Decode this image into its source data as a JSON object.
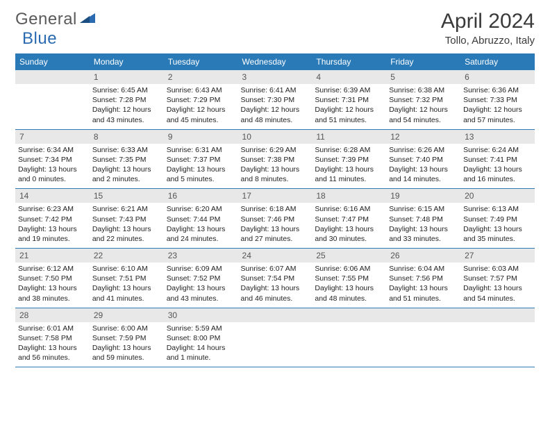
{
  "brand": {
    "name_gray": "General",
    "name_blue": "Blue"
  },
  "title": {
    "month": "April 2024",
    "location": "Tollo, Abruzzo, Italy"
  },
  "colors": {
    "header_bg": "#2a7ab8",
    "header_text": "#ffffff",
    "daynum_bg": "#e8e8e8",
    "border": "#2a7ab8",
    "brand_gray": "#5a5a5a",
    "brand_blue": "#2a6ab0"
  },
  "weekdays": [
    "Sunday",
    "Monday",
    "Tuesday",
    "Wednesday",
    "Thursday",
    "Friday",
    "Saturday"
  ],
  "start_offset": 1,
  "days": [
    {
      "n": 1,
      "sr": "6:45 AM",
      "ss": "7:28 PM",
      "dl": "12 hours and 43 minutes."
    },
    {
      "n": 2,
      "sr": "6:43 AM",
      "ss": "7:29 PM",
      "dl": "12 hours and 45 minutes."
    },
    {
      "n": 3,
      "sr": "6:41 AM",
      "ss": "7:30 PM",
      "dl": "12 hours and 48 minutes."
    },
    {
      "n": 4,
      "sr": "6:39 AM",
      "ss": "7:31 PM",
      "dl": "12 hours and 51 minutes."
    },
    {
      "n": 5,
      "sr": "6:38 AM",
      "ss": "7:32 PM",
      "dl": "12 hours and 54 minutes."
    },
    {
      "n": 6,
      "sr": "6:36 AM",
      "ss": "7:33 PM",
      "dl": "12 hours and 57 minutes."
    },
    {
      "n": 7,
      "sr": "6:34 AM",
      "ss": "7:34 PM",
      "dl": "13 hours and 0 minutes."
    },
    {
      "n": 8,
      "sr": "6:33 AM",
      "ss": "7:35 PM",
      "dl": "13 hours and 2 minutes."
    },
    {
      "n": 9,
      "sr": "6:31 AM",
      "ss": "7:37 PM",
      "dl": "13 hours and 5 minutes."
    },
    {
      "n": 10,
      "sr": "6:29 AM",
      "ss": "7:38 PM",
      "dl": "13 hours and 8 minutes."
    },
    {
      "n": 11,
      "sr": "6:28 AM",
      "ss": "7:39 PM",
      "dl": "13 hours and 11 minutes."
    },
    {
      "n": 12,
      "sr": "6:26 AM",
      "ss": "7:40 PM",
      "dl": "13 hours and 14 minutes."
    },
    {
      "n": 13,
      "sr": "6:24 AM",
      "ss": "7:41 PM",
      "dl": "13 hours and 16 minutes."
    },
    {
      "n": 14,
      "sr": "6:23 AM",
      "ss": "7:42 PM",
      "dl": "13 hours and 19 minutes."
    },
    {
      "n": 15,
      "sr": "6:21 AM",
      "ss": "7:43 PM",
      "dl": "13 hours and 22 minutes."
    },
    {
      "n": 16,
      "sr": "6:20 AM",
      "ss": "7:44 PM",
      "dl": "13 hours and 24 minutes."
    },
    {
      "n": 17,
      "sr": "6:18 AM",
      "ss": "7:46 PM",
      "dl": "13 hours and 27 minutes."
    },
    {
      "n": 18,
      "sr": "6:16 AM",
      "ss": "7:47 PM",
      "dl": "13 hours and 30 minutes."
    },
    {
      "n": 19,
      "sr": "6:15 AM",
      "ss": "7:48 PM",
      "dl": "13 hours and 33 minutes."
    },
    {
      "n": 20,
      "sr": "6:13 AM",
      "ss": "7:49 PM",
      "dl": "13 hours and 35 minutes."
    },
    {
      "n": 21,
      "sr": "6:12 AM",
      "ss": "7:50 PM",
      "dl": "13 hours and 38 minutes."
    },
    {
      "n": 22,
      "sr": "6:10 AM",
      "ss": "7:51 PM",
      "dl": "13 hours and 41 minutes."
    },
    {
      "n": 23,
      "sr": "6:09 AM",
      "ss": "7:52 PM",
      "dl": "13 hours and 43 minutes."
    },
    {
      "n": 24,
      "sr": "6:07 AM",
      "ss": "7:54 PM",
      "dl": "13 hours and 46 minutes."
    },
    {
      "n": 25,
      "sr": "6:06 AM",
      "ss": "7:55 PM",
      "dl": "13 hours and 48 minutes."
    },
    {
      "n": 26,
      "sr": "6:04 AM",
      "ss": "7:56 PM",
      "dl": "13 hours and 51 minutes."
    },
    {
      "n": 27,
      "sr": "6:03 AM",
      "ss": "7:57 PM",
      "dl": "13 hours and 54 minutes."
    },
    {
      "n": 28,
      "sr": "6:01 AM",
      "ss": "7:58 PM",
      "dl": "13 hours and 56 minutes."
    },
    {
      "n": 29,
      "sr": "6:00 AM",
      "ss": "7:59 PM",
      "dl": "13 hours and 59 minutes."
    },
    {
      "n": 30,
      "sr": "5:59 AM",
      "ss": "8:00 PM",
      "dl": "14 hours and 1 minute."
    }
  ],
  "labels": {
    "sunrise": "Sunrise:",
    "sunset": "Sunset:",
    "daylight": "Daylight:"
  }
}
